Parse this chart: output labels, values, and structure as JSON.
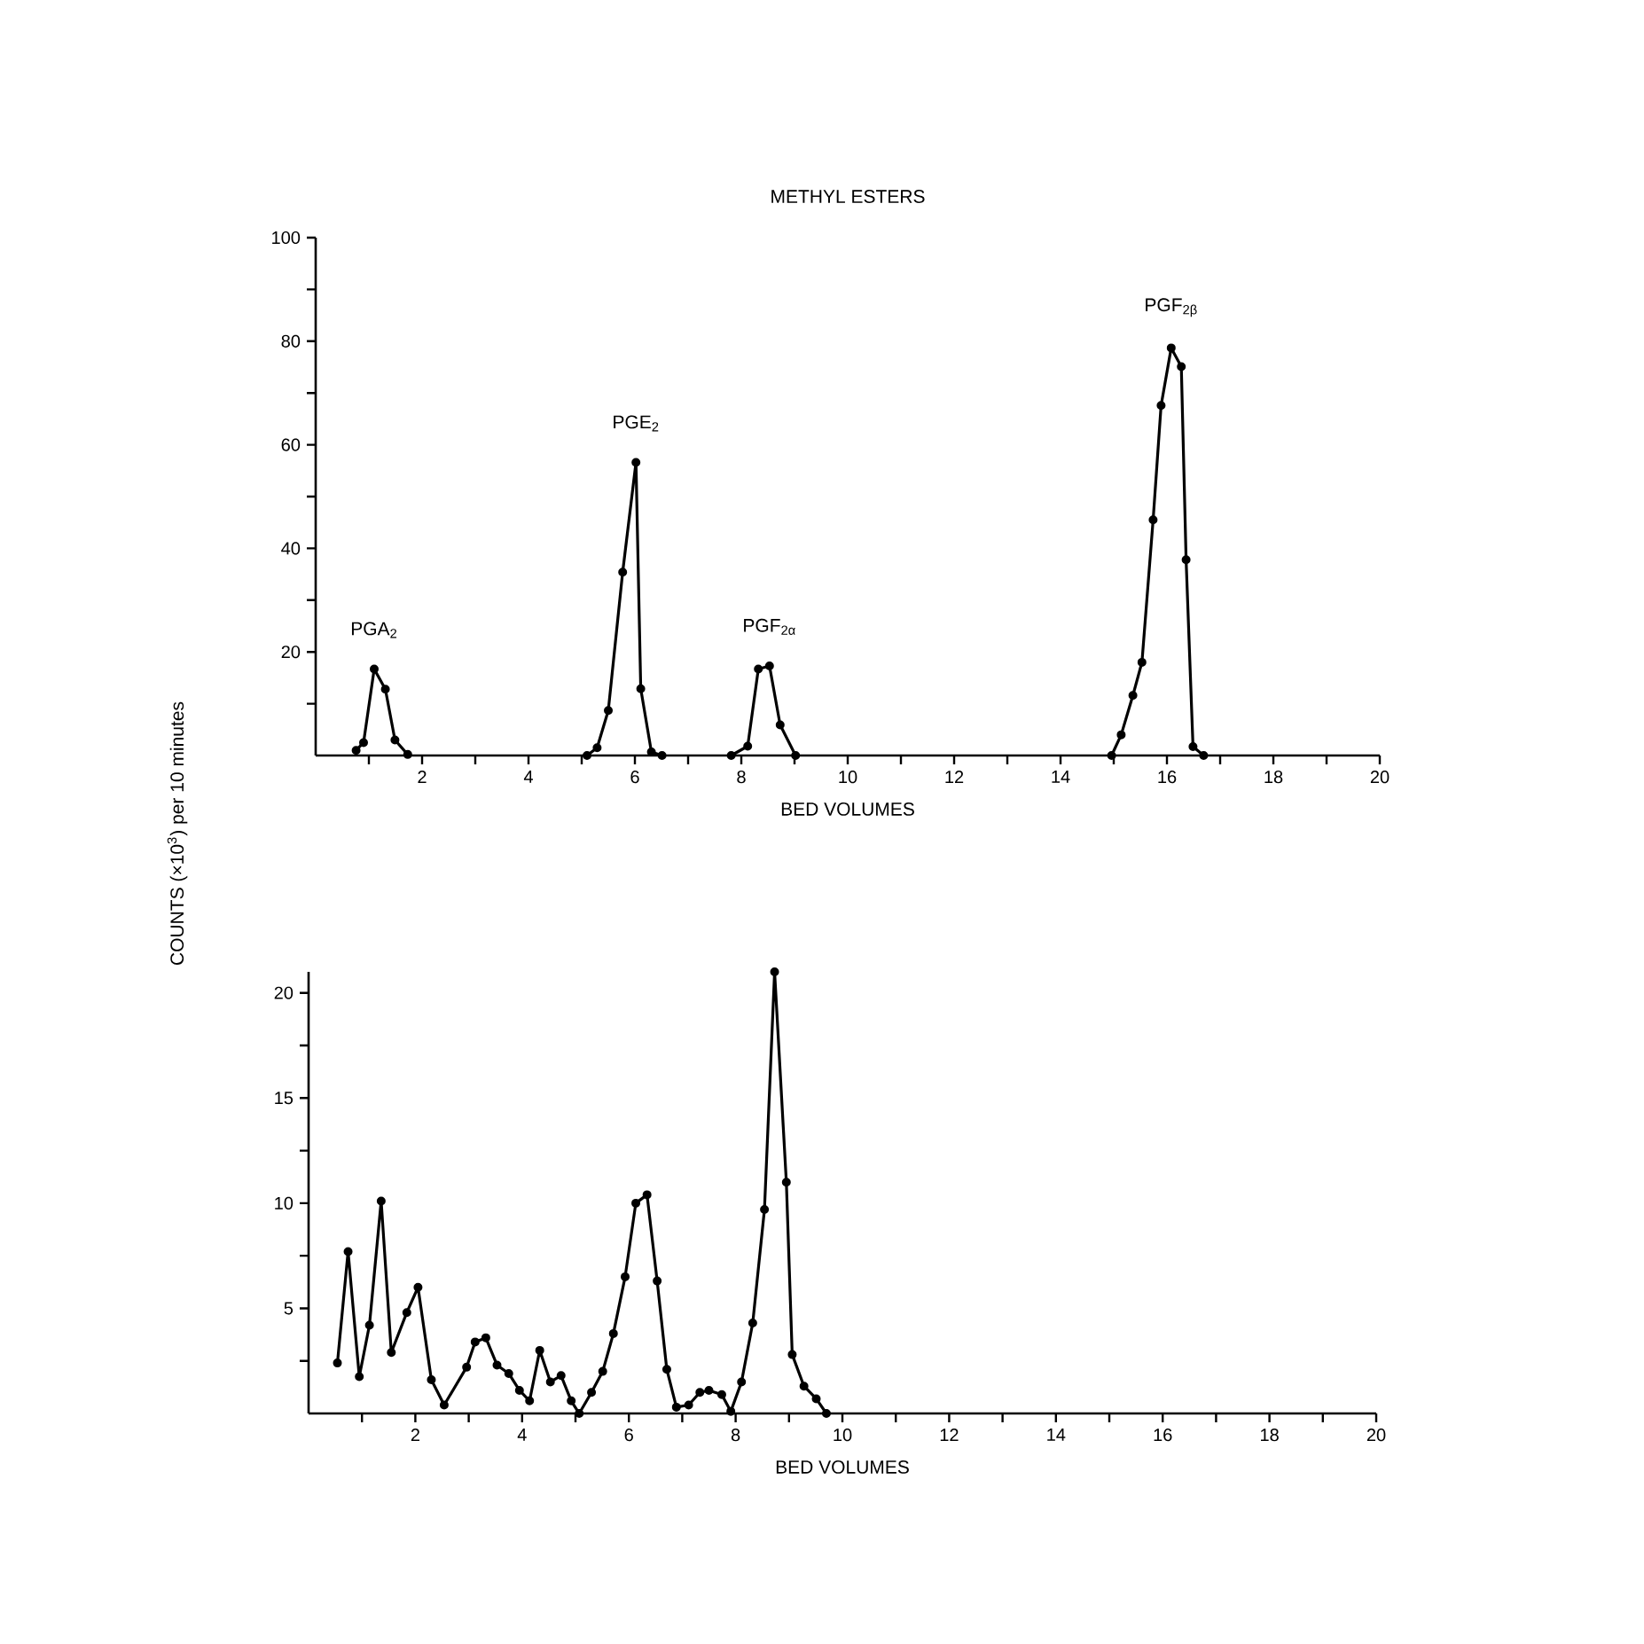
{
  "chart_data": [
    {
      "type": "line",
      "title": "METHYL ESTERS",
      "xlabel": "BED VOLUMES",
      "ylabel": "COUNTS (×10$^{3}$) per 10 minutes",
      "color": "#000000",
      "marker": "circle",
      "line_style": "solid",
      "x": [
        0.76,
        0.9,
        1.1,
        1.31,
        1.49,
        1.73,
        null,
        5.1,
        5.29,
        5.5,
        5.77,
        6.02,
        6.11,
        6.31,
        6.51,
        null,
        7.81,
        8.12,
        8.32,
        8.53,
        8.73,
        9.02,
        null,
        14.96,
        15.14,
        15.36,
        15.53,
        15.74,
        15.89,
        16.08,
        16.27,
        16.36,
        16.49,
        16.69
      ],
      "values": [
        1,
        2.5,
        16.7,
        12.8,
        3,
        0.2,
        null,
        0,
        1.5,
        8.7,
        35.4,
        56.6,
        12.9,
        0.7,
        0,
        null,
        0,
        1.8,
        16.7,
        17.3,
        5.9,
        0,
        null,
        0,
        4,
        11.6,
        18,
        45.5,
        67.6,
        78.7,
        75.1,
        37.8,
        1.7,
        0
      ],
      "xlim": [
        0,
        20
      ],
      "ylim": [
        0,
        100
      ],
      "xticks": [
        {
          "value": 1,
          "label": null
        },
        2,
        {
          "value": 3,
          "label": null
        },
        4,
        {
          "value": 5,
          "label": null
        },
        6,
        {
          "value": 7,
          "label": null
        },
        8,
        {
          "value": 9,
          "label": null
        },
        10,
        {
          "value": 11,
          "label": null
        },
        12,
        {
          "value": 13,
          "label": null
        },
        14,
        {
          "value": 15,
          "label": null
        },
        16,
        {
          "value": 17,
          "label": null
        },
        18,
        {
          "value": 19,
          "label": null
        },
        20
      ],
      "yticks": [
        {
          "value": 10,
          "label": null
        },
        20,
        {
          "value": 30,
          "label": null
        },
        40,
        {
          "value": 50,
          "label": null
        },
        60,
        {
          "value": 70,
          "label": null
        },
        80,
        {
          "value": 90,
          "label": null
        },
        100
      ],
      "annotations": [
        {
          "text": "PGA$_{2}$",
          "x": 1.1,
          "y": 16.7
        },
        {
          "text": "PGE$_{2}$",
          "x": 6.02,
          "y": 56.6
        },
        {
          "text": "PGF$_{2α}$",
          "x": 8.53,
          "y": 17.3
        },
        {
          "text": "PGF$_{2β}$",
          "x": 16.08,
          "y": 78.7
        }
      ]
    },
    {
      "type": "line",
      "xlabel": "BED VOLUMES",
      "color": "#000000",
      "marker": "circle",
      "line_style": "solid",
      "x": [
        0.54,
        0.74,
        0.95,
        1.14,
        1.36,
        1.55,
        1.84,
        2.05,
        2.3,
        2.54,
        2.96,
        3.12,
        3.32,
        3.53,
        3.75,
        3.95,
        4.14,
        4.33,
        4.53,
        4.73,
        4.92,
        5.07,
        5.3,
        5.51,
        5.71,
        5.93,
        6.13,
        6.34,
        6.53,
        6.71,
        6.89,
        7.12,
        7.33,
        7.5,
        7.74,
        7.91,
        8.11,
        8.32,
        8.54,
        8.73,
        8.95,
        9.06,
        9.28,
        9.51,
        9.7
      ],
      "values": [
        2.4,
        7.7,
        1.75,
        4.2,
        10.1,
        2.9,
        4.8,
        6.0,
        1.6,
        0.4,
        2.2,
        3.4,
        3.6,
        2.3,
        1.9,
        1.1,
        0.6,
        3.0,
        1.5,
        1.8,
        0.6,
        0,
        1.0,
        2.0,
        3.8,
        6.5,
        10.0,
        10.4,
        6.3,
        2.1,
        0.3,
        0.4,
        1.0,
        1.1,
        0.9,
        0.1,
        1.5,
        4.3,
        9.7,
        21.0,
        11.0,
        2.8,
        1.3,
        0.7,
        0
      ],
      "xlim": [
        0,
        20
      ],
      "ylim": [
        0,
        21
      ],
      "xticks": [
        {
          "value": 1,
          "label": null
        },
        2,
        {
          "value": 3,
          "label": null
        },
        4,
        {
          "value": 5,
          "label": null
        },
        6,
        {
          "value": 7,
          "label": null
        },
        8,
        {
          "value": 9,
          "label": null
        },
        10,
        {
          "value": 11,
          "label": null
        },
        12,
        {
          "value": 13,
          "label": null
        },
        14,
        {
          "value": 15,
          "label": null
        },
        16,
        {
          "value": 17,
          "label": null
        },
        18,
        {
          "value": 19,
          "label": null
        },
        20
      ],
      "yticks": [
        {
          "value": 2.5,
          "label": null
        },
        5,
        {
          "value": 7.5,
          "label": null
        },
        10,
        {
          "value": 12.5,
          "label": null
        },
        15,
        {
          "value": 17.5,
          "label": null
        },
        20
      ]
    }
  ]
}
